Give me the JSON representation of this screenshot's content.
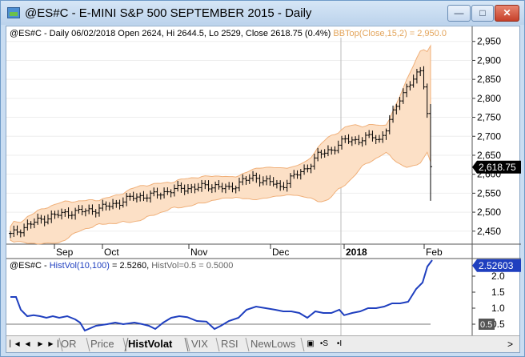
{
  "window": {
    "title": "@ES#C - E-MINI S&P 500 SEPTEMBER 2015 - Daily",
    "buttons": {
      "minimize": "—",
      "maximize": "□",
      "close": "✕"
    }
  },
  "price_legend": {
    "text": "@ES#C - Daily 06/02/2018 Open 2624, Hi 2644.5, Lo 2529, Close 2618.75 (0.4%) ",
    "indicator": "BBTop(Close,15,2) = 2,950.0"
  },
  "price_axis": {
    "ticks": [
      "2,950",
      "2,900",
      "2,850",
      "2,800",
      "2,750",
      "2,700",
      "2,650",
      "2,600",
      "2,550",
      "2,500",
      "2,450"
    ],
    "last_value": "2,618.75"
  },
  "time_axis": {
    "labels": [
      "Sep",
      "Oct",
      "Nov",
      "Dec",
      "2018",
      "Feb"
    ]
  },
  "vol_legend": {
    "prefix": "@ES#C - ",
    "indicator": "HistVol(10,100)",
    "value": " = 2.5260, ",
    "line": "HistVol=0.5 = 0.5000"
  },
  "vol_axis": {
    "ticks": [
      "2.0",
      "1.5",
      "1.0",
      "0.5"
    ],
    "last_value": "2.52603",
    "line_value": "0.5"
  },
  "tabs": {
    "partial": "OR",
    "items": [
      "Price",
      "HistVolat",
      "VIX",
      "RSI",
      "NewLows"
    ],
    "active": "HistVolat"
  },
  "tools": {
    "lock": "🔒",
    "s": "•S",
    "i": "•I",
    "scroll_right": ">"
  },
  "colors": {
    "band_fill": "#fce0c6",
    "band_line": "#f0b07a",
    "hist_vol_line": "#1f3fbf",
    "last_price_label_bg": "#000000",
    "vol_label_bg": "#1f3fbf"
  },
  "chart_data": {
    "type": "line",
    "price": {
      "y_range": [
        2420,
        2960
      ],
      "series_name": "@ES#C",
      "band_name": "BBTop(Close,15,2)",
      "last_close": 2618.75
    },
    "hist_vol": {
      "series_name": "HistVol(10,100)",
      "last_value": 2.526,
      "reference_line": 0.5,
      "y_range": [
        0.2,
        2.3
      ]
    }
  }
}
